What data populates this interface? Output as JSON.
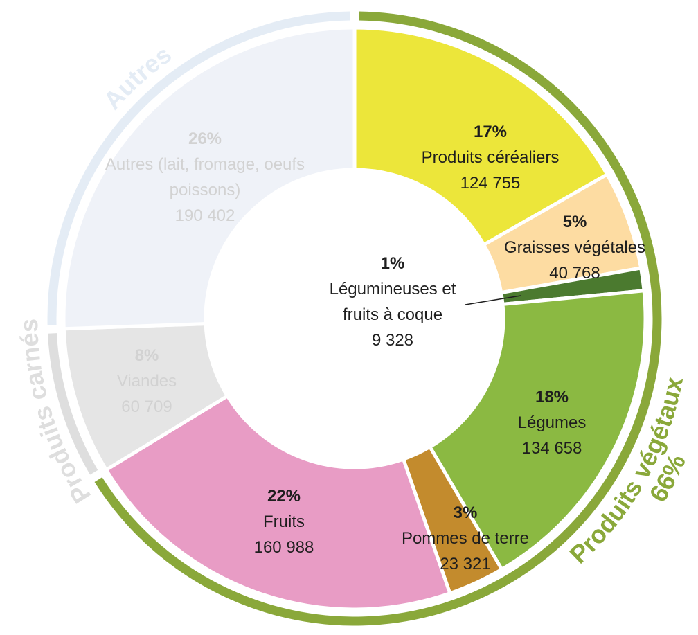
{
  "chart_data": {
    "type": "donut",
    "categories": [
      "Produits céréaliers",
      "Graisses végétales",
      "Légumineuses et fruits à coque",
      "Légumes",
      "Pommes de terre",
      "Fruits",
      "Viandes",
      "Autres (lait, fromage, oeufs poissons)"
    ],
    "values": [
      124755,
      40768,
      9328,
      134658,
      23321,
      160988,
      60709,
      190402
    ],
    "value_labels": [
      "124 755",
      "40 768",
      "9 328",
      "134 658",
      "23 321",
      "160 988",
      "60 709",
      "190 402"
    ],
    "percent_labels": [
      "17%",
      "5%",
      "1%",
      "18%",
      "3%",
      "22%",
      "8%",
      "26%"
    ],
    "colors": [
      "#ece63a",
      "#fddca2",
      "#4b7a2f",
      "#8bb942",
      "#c38b2d",
      "#e89cc5",
      "#e5e5e5",
      "#eff2f8"
    ],
    "groups": [
      {
        "name": "Produits végétaux",
        "share": "66%",
        "color": "#8aa83a",
        "label_color": "#1e1e1e",
        "members": [
          "Produits céréaliers",
          "Graisses végétales",
          "Légumineuses et fruits à coque",
          "Légumes",
          "Pommes de terre",
          "Fruits"
        ]
      },
      {
        "name": "Produits carnés",
        "color": "#dedede",
        "label_color": "#d2d2d2",
        "members": [
          "Viandes"
        ]
      },
      {
        "name": "Autres",
        "color": "#e4ecf5",
        "label_color": "#d2d2d2",
        "members": [
          "Autres (lait, fromage, oeufs poissons)"
        ]
      }
    ]
  }
}
